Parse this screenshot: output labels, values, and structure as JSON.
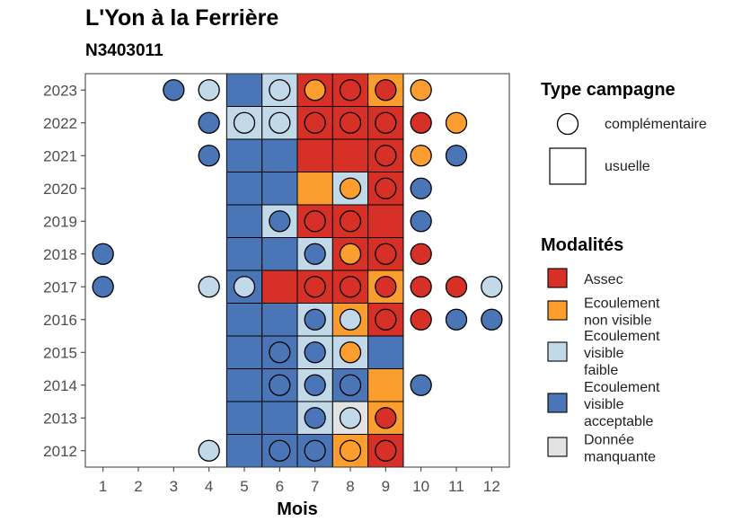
{
  "title": "L'Yon à la Ferrière",
  "subtitle": "N3403011",
  "chart_data": {
    "type": "heatmap",
    "xlabel": "Mois",
    "ylabel": "",
    "x_ticks": [
      1,
      2,
      3,
      4,
      5,
      6,
      7,
      8,
      9,
      10,
      11,
      12
    ],
    "y_ticks": [
      2012,
      2013,
      2014,
      2015,
      2016,
      2017,
      2018,
      2019,
      2020,
      2021,
      2022,
      2023
    ],
    "xlim": [
      0.5,
      12.5
    ],
    "ylim": [
      2011.5,
      2023.5
    ],
    "grid": false,
    "colors": {
      "Assec": "#d73027",
      "Ecoulement non visible": "#fc9d30",
      "Ecoulement visible faible": "#c1d9e8",
      "Ecoulement visible acceptable": "#4a76b8",
      "Donnée manquante": "#e3e3e3"
    },
    "squares": [
      {
        "year": 2023,
        "month": 5,
        "value": "Ecoulement visible acceptable"
      },
      {
        "year": 2023,
        "month": 6,
        "value": "Ecoulement visible faible"
      },
      {
        "year": 2023,
        "month": 7,
        "value": "Assec"
      },
      {
        "year": 2023,
        "month": 8,
        "value": "Assec"
      },
      {
        "year": 2023,
        "month": 9,
        "value": "Ecoulement non visible"
      },
      {
        "year": 2022,
        "month": 5,
        "value": "Ecoulement visible faible"
      },
      {
        "year": 2022,
        "month": 6,
        "value": "Ecoulement visible faible"
      },
      {
        "year": 2022,
        "month": 7,
        "value": "Assec"
      },
      {
        "year": 2022,
        "month": 8,
        "value": "Assec"
      },
      {
        "year": 2022,
        "month": 9,
        "value": "Assec"
      },
      {
        "year": 2021,
        "month": 5,
        "value": "Ecoulement visible acceptable"
      },
      {
        "year": 2021,
        "month": 6,
        "value": "Ecoulement visible acceptable"
      },
      {
        "year": 2021,
        "month": 7,
        "value": "Assec"
      },
      {
        "year": 2021,
        "month": 8,
        "value": "Assec"
      },
      {
        "year": 2021,
        "month": 9,
        "value": "Assec"
      },
      {
        "year": 2020,
        "month": 5,
        "value": "Ecoulement visible acceptable"
      },
      {
        "year": 2020,
        "month": 6,
        "value": "Ecoulement visible acceptable"
      },
      {
        "year": 2020,
        "month": 7,
        "value": "Ecoulement non visible"
      },
      {
        "year": 2020,
        "month": 8,
        "value": "Ecoulement visible faible"
      },
      {
        "year": 2020,
        "month": 9,
        "value": "Assec"
      },
      {
        "year": 2019,
        "month": 5,
        "value": "Ecoulement visible acceptable"
      },
      {
        "year": 2019,
        "month": 6,
        "value": "Ecoulement visible faible"
      },
      {
        "year": 2019,
        "month": 7,
        "value": "Assec"
      },
      {
        "year": 2019,
        "month": 8,
        "value": "Assec"
      },
      {
        "year": 2019,
        "month": 9,
        "value": "Assec"
      },
      {
        "year": 2018,
        "month": 5,
        "value": "Ecoulement visible acceptable"
      },
      {
        "year": 2018,
        "month": 6,
        "value": "Ecoulement visible acceptable"
      },
      {
        "year": 2018,
        "month": 7,
        "value": "Ecoulement visible faible"
      },
      {
        "year": 2018,
        "month": 8,
        "value": "Assec"
      },
      {
        "year": 2018,
        "month": 9,
        "value": "Assec"
      },
      {
        "year": 2017,
        "month": 5,
        "value": "Ecoulement visible acceptable"
      },
      {
        "year": 2017,
        "month": 6,
        "value": "Assec"
      },
      {
        "year": 2017,
        "month": 7,
        "value": "Assec"
      },
      {
        "year": 2017,
        "month": 8,
        "value": "Assec"
      },
      {
        "year": 2017,
        "month": 9,
        "value": "Ecoulement non visible"
      },
      {
        "year": 2016,
        "month": 5,
        "value": "Ecoulement visible acceptable"
      },
      {
        "year": 2016,
        "month": 6,
        "value": "Ecoulement visible acceptable"
      },
      {
        "year": 2016,
        "month": 7,
        "value": "Ecoulement visible faible"
      },
      {
        "year": 2016,
        "month": 8,
        "value": "Ecoulement non visible"
      },
      {
        "year": 2016,
        "month": 9,
        "value": "Assec"
      },
      {
        "year": 2015,
        "month": 5,
        "value": "Ecoulement visible acceptable"
      },
      {
        "year": 2015,
        "month": 6,
        "value": "Ecoulement visible acceptable"
      },
      {
        "year": 2015,
        "month": 7,
        "value": "Ecoulement visible faible"
      },
      {
        "year": 2015,
        "month": 8,
        "value": "Ecoulement visible faible"
      },
      {
        "year": 2015,
        "month": 9,
        "value": "Ecoulement visible acceptable"
      },
      {
        "year": 2014,
        "month": 5,
        "value": "Ecoulement visible acceptable"
      },
      {
        "year": 2014,
        "month": 6,
        "value": "Ecoulement visible acceptable"
      },
      {
        "year": 2014,
        "month": 7,
        "value": "Ecoulement visible faible"
      },
      {
        "year": 2014,
        "month": 8,
        "value": "Ecoulement visible acceptable"
      },
      {
        "year": 2014,
        "month": 9,
        "value": "Ecoulement non visible"
      },
      {
        "year": 2013,
        "month": 5,
        "value": "Ecoulement visible acceptable"
      },
      {
        "year": 2013,
        "month": 6,
        "value": "Ecoulement visible acceptable"
      },
      {
        "year": 2013,
        "month": 7,
        "value": "Ecoulement visible faible"
      },
      {
        "year": 2013,
        "month": 8,
        "value": "Donnée manquante"
      },
      {
        "year": 2013,
        "month": 9,
        "value": "Ecoulement non visible"
      },
      {
        "year": 2012,
        "month": 5,
        "value": "Ecoulement visible acceptable"
      },
      {
        "year": 2012,
        "month": 6,
        "value": "Ecoulement visible acceptable"
      },
      {
        "year": 2012,
        "month": 7,
        "value": "Ecoulement visible acceptable"
      },
      {
        "year": 2012,
        "month": 8,
        "value": "Ecoulement non visible"
      },
      {
        "year": 2012,
        "month": 9,
        "value": "Assec"
      }
    ],
    "circles": [
      {
        "year": 2023,
        "month": 3,
        "value": "Ecoulement visible acceptable"
      },
      {
        "year": 2023,
        "month": 4,
        "value": "Ecoulement visible faible"
      },
      {
        "year": 2023,
        "month": 6,
        "value": "Ecoulement visible faible"
      },
      {
        "year": 2023,
        "month": 7,
        "value": "Ecoulement non visible"
      },
      {
        "year": 2023,
        "month": 8,
        "value": "Assec"
      },
      {
        "year": 2023,
        "month": 9,
        "value": "Assec"
      },
      {
        "year": 2023,
        "month": 10,
        "value": "Ecoulement non visible"
      },
      {
        "year": 2022,
        "month": 4,
        "value": "Ecoulement visible acceptable"
      },
      {
        "year": 2022,
        "month": 5,
        "value": "Ecoulement visible faible"
      },
      {
        "year": 2022,
        "month": 6,
        "value": "Ecoulement visible faible"
      },
      {
        "year": 2022,
        "month": 7,
        "value": "Assec"
      },
      {
        "year": 2022,
        "month": 8,
        "value": "Assec"
      },
      {
        "year": 2022,
        "month": 9,
        "value": "Assec"
      },
      {
        "year": 2022,
        "month": 10,
        "value": "Assec"
      },
      {
        "year": 2022,
        "month": 11,
        "value": "Ecoulement non visible"
      },
      {
        "year": 2021,
        "month": 4,
        "value": "Ecoulement visible acceptable"
      },
      {
        "year": 2021,
        "month": 9,
        "value": "Assec"
      },
      {
        "year": 2021,
        "month": 10,
        "value": "Ecoulement non visible"
      },
      {
        "year": 2021,
        "month": 11,
        "value": "Ecoulement visible acceptable"
      },
      {
        "year": 2020,
        "month": 8,
        "value": "Ecoulement non visible"
      },
      {
        "year": 2020,
        "month": 9,
        "value": "Assec"
      },
      {
        "year": 2020,
        "month": 10,
        "value": "Ecoulement visible acceptable"
      },
      {
        "year": 2019,
        "month": 6,
        "value": "Ecoulement visible acceptable"
      },
      {
        "year": 2019,
        "month": 7,
        "value": "Assec"
      },
      {
        "year": 2019,
        "month": 8,
        "value": "Assec"
      },
      {
        "year": 2019,
        "month": 10,
        "value": "Ecoulement visible acceptable"
      },
      {
        "year": 2018,
        "month": 1,
        "value": "Ecoulement visible acceptable"
      },
      {
        "year": 2018,
        "month": 7,
        "value": "Ecoulement visible acceptable"
      },
      {
        "year": 2018,
        "month": 8,
        "value": "Ecoulement non visible"
      },
      {
        "year": 2018,
        "month": 9,
        "value": "Assec"
      },
      {
        "year": 2018,
        "month": 10,
        "value": "Assec"
      },
      {
        "year": 2017,
        "month": 1,
        "value": "Ecoulement visible acceptable"
      },
      {
        "year": 2017,
        "month": 4,
        "value": "Ecoulement visible faible"
      },
      {
        "year": 2017,
        "month": 5,
        "value": "Ecoulement visible faible"
      },
      {
        "year": 2017,
        "month": 7,
        "value": "Assec"
      },
      {
        "year": 2017,
        "month": 8,
        "value": "Assec"
      },
      {
        "year": 2017,
        "month": 9,
        "value": "Assec"
      },
      {
        "year": 2017,
        "month": 10,
        "value": "Assec"
      },
      {
        "year": 2017,
        "month": 11,
        "value": "Assec"
      },
      {
        "year": 2017,
        "month": 12,
        "value": "Ecoulement visible faible"
      },
      {
        "year": 2016,
        "month": 7,
        "value": "Ecoulement visible acceptable"
      },
      {
        "year": 2016,
        "month": 8,
        "value": "Ecoulement visible faible"
      },
      {
        "year": 2016,
        "month": 9,
        "value": "Assec"
      },
      {
        "year": 2016,
        "month": 10,
        "value": "Assec"
      },
      {
        "year": 2016,
        "month": 11,
        "value": "Ecoulement visible acceptable"
      },
      {
        "year": 2016,
        "month": 12,
        "value": "Ecoulement visible acceptable"
      },
      {
        "year": 2015,
        "month": 6,
        "value": "Ecoulement visible acceptable"
      },
      {
        "year": 2015,
        "month": 7,
        "value": "Ecoulement visible acceptable"
      },
      {
        "year": 2015,
        "month": 8,
        "value": "Ecoulement non visible"
      },
      {
        "year": 2014,
        "month": 6,
        "value": "Ecoulement visible acceptable"
      },
      {
        "year": 2014,
        "month": 7,
        "value": "Ecoulement visible acceptable"
      },
      {
        "year": 2014,
        "month": 8,
        "value": "Ecoulement visible acceptable"
      },
      {
        "year": 2014,
        "month": 10,
        "value": "Ecoulement visible acceptable"
      },
      {
        "year": 2013,
        "month": 7,
        "value": "Ecoulement visible acceptable"
      },
      {
        "year": 2013,
        "month": 8,
        "value": "Ecoulement visible faible"
      },
      {
        "year": 2013,
        "month": 9,
        "value": "Assec"
      },
      {
        "year": 2012,
        "month": 4,
        "value": "Ecoulement visible faible"
      },
      {
        "year": 2012,
        "month": 6,
        "value": "Ecoulement visible acceptable"
      },
      {
        "year": 2012,
        "month": 7,
        "value": "Ecoulement visible acceptable"
      },
      {
        "year": 2012,
        "month": 8,
        "value": "Ecoulement non visible"
      },
      {
        "year": 2012,
        "month": 9,
        "value": "Assec"
      }
    ]
  },
  "legend": {
    "campaign_title": "Type campagne",
    "campaign_items": [
      {
        "shape": "circle",
        "label": "complémentaire"
      },
      {
        "shape": "square",
        "label": "usuelle"
      }
    ],
    "modalities_title": "Modalités",
    "modalities_items": [
      {
        "key": "Assec",
        "lines": [
          "Assec"
        ]
      },
      {
        "key": "Ecoulement non visible",
        "lines": [
          "Ecoulement",
          "non visible"
        ]
      },
      {
        "key": "Ecoulement visible faible",
        "lines": [
          "Ecoulement",
          "visible",
          "faible"
        ]
      },
      {
        "key": "Ecoulement visible acceptable",
        "lines": [
          "Ecoulement",
          "visible",
          "acceptable"
        ]
      },
      {
        "key": "Donnée manquante",
        "lines": [
          "Donnée",
          "manquante"
        ]
      }
    ]
  }
}
